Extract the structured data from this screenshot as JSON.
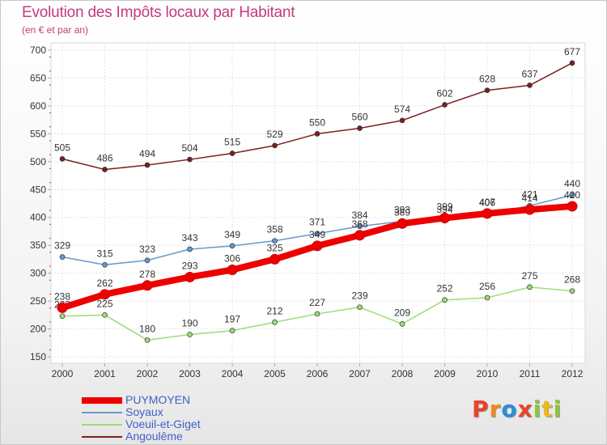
{
  "header": {
    "title": "Evolution des Impôts locaux par Habitant",
    "subtitle": "(en € et par an)"
  },
  "logo": {
    "text": "Proxiti",
    "letters": [
      {
        "ch": "P",
        "color": "#e8442c"
      },
      {
        "ch": "r",
        "color": "#f08a1e"
      },
      {
        "ch": "o",
        "color": "#2a8fd6"
      },
      {
        "ch": "x",
        "color": "#e8442c"
      },
      {
        "ch": "i",
        "color": "#8cc63f"
      },
      {
        "ch": "t",
        "color": "#f0b81e"
      },
      {
        "ch": "i",
        "color": "#8cc63f"
      }
    ]
  },
  "chart_data": {
    "type": "line",
    "title": "Evolution des Impôts locaux par Habitant",
    "subtitle": "(en € et par an)",
    "x": [
      "2000",
      "2001",
      "2002",
      "2003",
      "2004",
      "2005",
      "2006",
      "2007",
      "2008",
      "2009",
      "2010",
      "2011",
      "2012"
    ],
    "ylim": [
      150,
      700
    ],
    "yticks": [
      150,
      200,
      250,
      300,
      350,
      400,
      450,
      500,
      550,
      600,
      650,
      700
    ],
    "grid": true,
    "legend_position": "bottom-left",
    "series": [
      {
        "name": "PUYMOYEN",
        "color": "#ee0000",
        "values": [
          238,
          262,
          278,
          293,
          306,
          325,
          349,
          368,
          389,
          399,
          407,
          414,
          420
        ]
      },
      {
        "name": "Soyaux",
        "color": "#6699cc",
        "values": [
          329,
          315,
          323,
          343,
          349,
          358,
          371,
          384,
          393,
          394,
          406,
          421,
          440
        ]
      },
      {
        "name": "Voeuil-et-Giget",
        "color": "#99dd77",
        "values": [
          223,
          225,
          180,
          190,
          197,
          212,
          227,
          239,
          209,
          252,
          256,
          275,
          268
        ]
      },
      {
        "name": "Angoulême",
        "color": "#7a2020",
        "values": [
          505,
          486,
          494,
          504,
          515,
          529,
          550,
          560,
          574,
          602,
          628,
          637,
          677
        ]
      }
    ]
  }
}
